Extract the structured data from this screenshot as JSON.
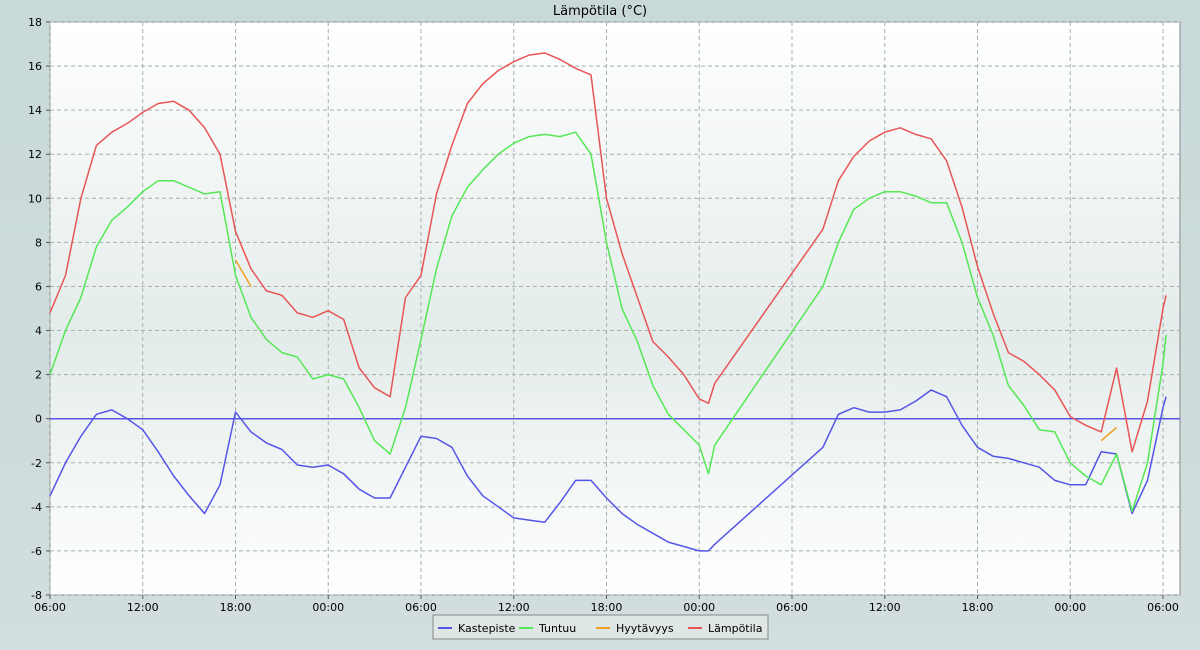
{
  "chart_data": {
    "type": "line",
    "title": "Lämpötila (°C)",
    "x": [
      0,
      1,
      2,
      3,
      4,
      5,
      6,
      7,
      8,
      9,
      10,
      11,
      12,
      13,
      14,
      15,
      16,
      17,
      18,
      19,
      20,
      21,
      22,
      23,
      24,
      25,
      26,
      27,
      28,
      29,
      30,
      31,
      32,
      33,
      34,
      35,
      36,
      37,
      38,
      39,
      40,
      41,
      42,
      42.6,
      43,
      50,
      51,
      52,
      53,
      54,
      55,
      56,
      57,
      58,
      59,
      60,
      61,
      62,
      63,
      64,
      65,
      66,
      67,
      68,
      69,
      70,
      71,
      72,
      72.2
    ],
    "series": [
      {
        "name": "Kastepiste",
        "color": "#5555e8",
        "values": [
          -3.5,
          -2.0,
          -0.8,
          0.2,
          0.4,
          0.0,
          -0.5,
          -1.5,
          -2.6,
          -3.5,
          -4.3,
          -3.0,
          0.3,
          -0.6,
          -1.1,
          -1.4,
          -2.1,
          -2.2,
          -2.1,
          -2.5,
          -3.2,
          -3.6,
          -3.6,
          -2.2,
          -0.8,
          -0.9,
          -1.3,
          -2.6,
          -3.5,
          -4.0,
          -4.5,
          -4.6,
          -4.7,
          -3.8,
          -2.8,
          -2.8,
          -3.6,
          -4.3,
          -4.8,
          -5.2,
          -5.6,
          -5.8,
          -6.0,
          -6.0,
          -5.7,
          -1.3,
          0.2,
          0.5,
          0.3,
          0.3,
          0.4,
          0.8,
          1.3,
          1.0,
          -0.3,
          -1.3,
          -1.7,
          -1.8,
          -2.0,
          -2.2,
          -2.8,
          -3.0,
          -3.0,
          -1.5,
          -1.6,
          -4.3,
          -2.8,
          0.5,
          1.0
        ]
      },
      {
        "name": "Tuntuu",
        "color": "#55e855",
        "values": [
          2.0,
          4.0,
          5.5,
          7.8,
          9.0,
          9.6,
          10.3,
          10.8,
          10.8,
          10.5,
          10.2,
          10.3,
          6.5,
          4.6,
          3.6,
          3.0,
          2.8,
          1.8,
          2.0,
          1.8,
          0.5,
          -1.0,
          -1.6,
          0.5,
          3.6,
          6.8,
          9.2,
          10.5,
          11.3,
          12.0,
          12.5,
          12.8,
          12.9,
          12.8,
          13.0,
          12.0,
          8.0,
          5.0,
          3.5,
          1.5,
          0.2,
          -0.5,
          -1.2,
          -2.5,
          -1.2,
          6.0,
          8.0,
          9.5,
          10.0,
          10.3,
          10.3,
          10.1,
          9.8,
          9.8,
          8.0,
          5.5,
          3.8,
          1.5,
          0.6,
          -0.5,
          -0.6,
          -2.0,
          -2.6,
          -3.0,
          -1.6,
          -4.2,
          -2.0,
          2.5,
          3.8
        ]
      },
      {
        "name": "Hyytävyys",
        "color": "#f0a020",
        "values": [
          null,
          null,
          null,
          null,
          null,
          null,
          null,
          null,
          null,
          null,
          null,
          null,
          7.2,
          6.0,
          null,
          null,
          null,
          null,
          null,
          null,
          null,
          null,
          null,
          null,
          null,
          null,
          null,
          null,
          null,
          null,
          null,
          null,
          null,
          null,
          null,
          null,
          null,
          null,
          null,
          null,
          null,
          null,
          null,
          null,
          null,
          null,
          null,
          null,
          null,
          null,
          null,
          null,
          null,
          null,
          null,
          null,
          null,
          null,
          null,
          null,
          null,
          null,
          null,
          -1.0,
          -0.4,
          null,
          null,
          null,
          null
        ]
      },
      {
        "name": "Lämpötila",
        "color": "#e85555",
        "values": [
          4.8,
          6.5,
          10,
          12.4,
          13.0,
          13.4,
          13.9,
          14.3,
          14.4,
          14.0,
          13.2,
          12.0,
          8.5,
          6.8,
          5.8,
          5.6,
          4.8,
          4.6,
          4.9,
          4.5,
          2.3,
          1.4,
          1.0,
          5.5,
          6.5,
          10.2,
          12.4,
          14.3,
          15.2,
          15.8,
          16.2,
          16.5,
          16.6,
          16.3,
          15.9,
          15.6,
          10,
          7.5,
          5.5,
          3.5,
          2.8,
          2.0,
          0.9,
          0.7,
          1.6,
          8.6,
          10.8,
          11.9,
          12.6,
          13.0,
          13.2,
          12.9,
          12.7,
          11.7,
          9.6,
          6.9,
          4.8,
          3.0,
          2.6,
          2.0,
          1.3,
          0.1,
          -0.3,
          -0.6,
          2.3,
          -1.5,
          0.8,
          5.0,
          5.6
        ]
      }
    ],
    "hline": 0,
    "xlim": [
      0,
      73.1
    ],
    "xticks": [
      {
        "value": 0,
        "label": "06:00"
      },
      {
        "value": 6,
        "label": "12:00"
      },
      {
        "value": 12,
        "label": "18:00"
      },
      {
        "value": 18,
        "label": "00:00"
      },
      {
        "value": 24,
        "label": "06:00"
      },
      {
        "value": 30,
        "label": "12:00"
      },
      {
        "value": 36,
        "label": "18:00"
      },
      {
        "value": 42,
        "label": "00:00"
      },
      {
        "value": 48,
        "label": "06:00"
      },
      {
        "value": 54,
        "label": "12:00"
      },
      {
        "value": 60,
        "label": "18:00"
      },
      {
        "value": 66,
        "label": "00:00"
      },
      {
        "value": 72,
        "label": "06:00"
      }
    ],
    "ylim": [
      -8,
      18
    ],
    "yticks": [
      -8,
      -6,
      -4,
      -2,
      0,
      2,
      4,
      6,
      8,
      10,
      12,
      14,
      16,
      18
    ],
    "grid": true,
    "legend": "bottom"
  }
}
